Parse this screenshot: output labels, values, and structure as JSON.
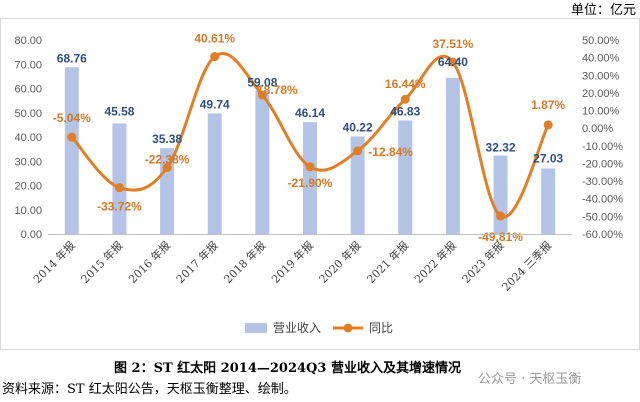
{
  "unit_label": "单位：亿元",
  "caption": "图 2：ST 红太阳 2014—2024Q3 营业收入及其增速情况",
  "source": "资料来源：ST 红太阳公告，天枢玉衡整理、绘制。",
  "watermark": "公众号 · 天枢玉衡",
  "colors": {
    "bar": "#b4c4e7",
    "line": "#e07f26",
    "bar_label": "#2f4f7f",
    "line_label": "#d07a2a"
  },
  "chart_data": {
    "type": "bar",
    "categories": [
      "2014 年报",
      "2015 年报",
      "2016 年报",
      "2017 年报",
      "2018 年报",
      "2019 年报",
      "2020 年报",
      "2021 年报",
      "2022 年报",
      "2023 年报",
      "2024 三季报"
    ],
    "series": [
      {
        "name": "营业收入",
        "type": "bar",
        "axis": "left",
        "values": [
          68.76,
          45.58,
          35.38,
          49.74,
          59.08,
          46.14,
          40.22,
          46.83,
          64.4,
          32.32,
          27.03
        ],
        "labels": [
          "68.76",
          "45.58",
          "35.38",
          "49.74",
          "59.08",
          "46.14",
          "40.22",
          "46.83",
          "64.40",
          "32.32",
          "27.03"
        ]
      },
      {
        "name": "同比",
        "type": "line",
        "axis": "right",
        "values": [
          -5.04,
          -33.72,
          -22.38,
          40.61,
          18.78,
          -21.9,
          -12.84,
          16.44,
          37.51,
          -49.81,
          1.87
        ],
        "labels": [
          "-5.04%",
          "-33.72%",
          "-22.38%",
          "40.61%",
          "18.78%",
          "-21.90%",
          "-12.84%",
          "16.44%",
          "37.51%",
          "-49.81%",
          "1.87%"
        ]
      }
    ],
    "y_left": {
      "min": 0,
      "max": 80,
      "step": 10,
      "tick_labels": [
        "0.00",
        "10.00",
        "20.00",
        "30.00",
        "40.00",
        "50.00",
        "60.00",
        "70.00",
        "80.00"
      ]
    },
    "y_right": {
      "min": -60,
      "max": 50,
      "step": 10,
      "tick_labels": [
        "-60.00%",
        "-50.00%",
        "-40.00%",
        "-30.00%",
        "-20.00%",
        "-10.00%",
        "0.00%",
        "10.00%",
        "20.00%",
        "30.00%",
        "40.00%",
        "50.00%"
      ]
    },
    "grid": false,
    "legend_position": "bottom",
    "legend": [
      "营业收入",
      "同比"
    ]
  }
}
